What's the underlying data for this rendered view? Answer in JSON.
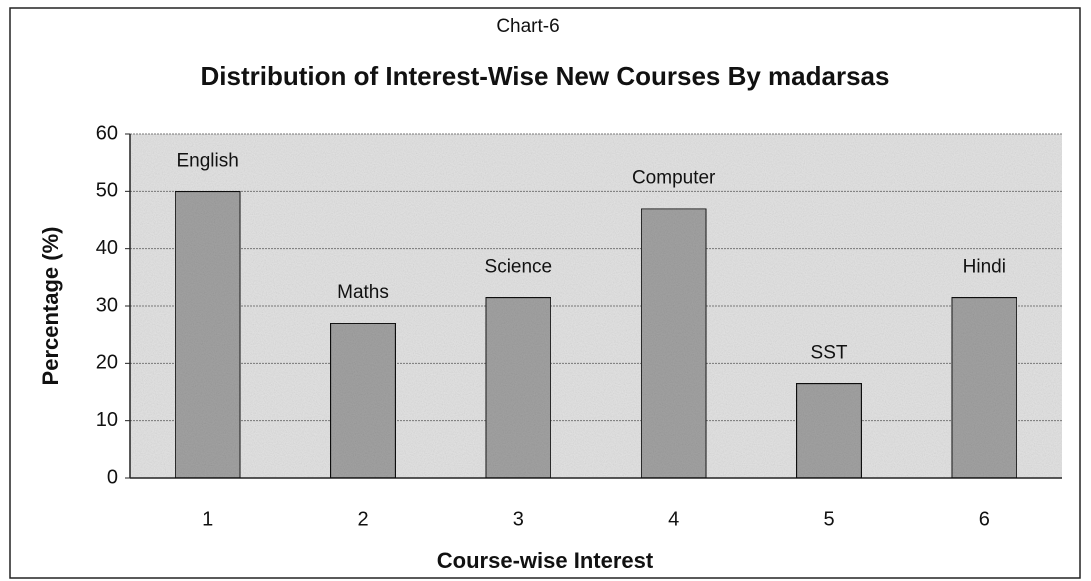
{
  "chart_data": {
    "type": "bar",
    "caption": "Chart-6",
    "title": "Distribution of Interest-Wise New Courses By madarsas",
    "x_label": "Course-wise Interest",
    "y_label": "Percentage (%)",
    "categories": [
      "1",
      "2",
      "3",
      "4",
      "5",
      "6"
    ],
    "bar_labels": [
      "English",
      "Maths",
      "Science",
      "Computer",
      "SST",
      "Hindi"
    ],
    "values": [
      50,
      27,
      31.5,
      47,
      16.5,
      31.5
    ],
    "color": "#a3a3a3",
    "ylim": [
      0,
      60
    ],
    "yticks": [
      0,
      10,
      20,
      30,
      40,
      50,
      60
    ],
    "grid": true
  }
}
